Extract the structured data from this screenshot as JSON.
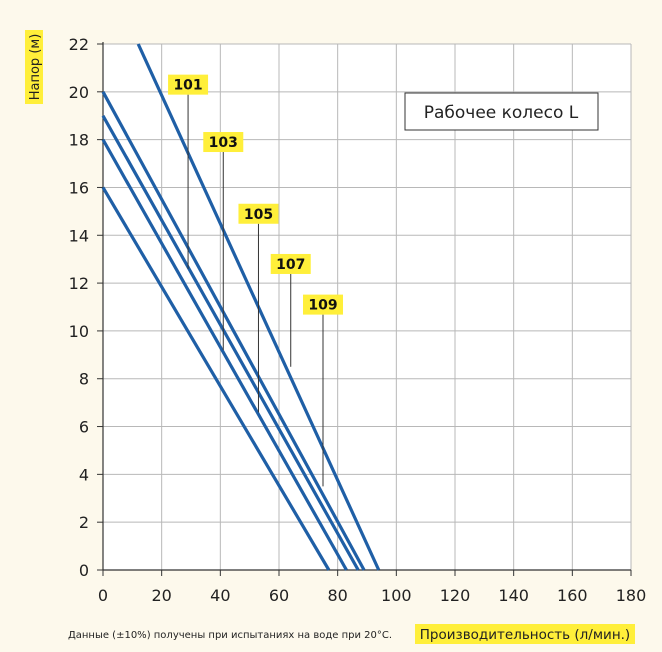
{
  "colors": {
    "background": "#fdf9ec",
    "plot_background": "#ffffff",
    "line": "#1f5fa6",
    "grid": "#b8b8b8",
    "label_highlight": "#ffef3a",
    "text": "#222222"
  },
  "chart_data": {
    "type": "line",
    "title": "",
    "annotation_box": "Рабочее колесо L",
    "ylabel": "Напор (м)",
    "xlabel": "Производительность (л/мин.)",
    "footnote": "Данные (±10%) получены при испытаниях на воде при 20°С.",
    "xlim": [
      0,
      180
    ],
    "ylim": [
      0,
      22
    ],
    "x_ticks": [
      0,
      20,
      40,
      60,
      80,
      100,
      120,
      140,
      160,
      180
    ],
    "y_ticks": [
      0,
      2,
      4,
      6,
      8,
      10,
      12,
      14,
      16,
      18,
      20,
      22
    ],
    "grid": true,
    "series": [
      {
        "name": "101",
        "x": [
          0,
          77
        ],
        "y": [
          16,
          0
        ],
        "label_at": [
          29,
          20.3
        ],
        "pointer_to": [
          29,
          12.6
        ]
      },
      {
        "name": "103",
        "x": [
          0,
          83
        ],
        "y": [
          18,
          0
        ],
        "label_at": [
          41,
          17.9
        ],
        "pointer_to": [
          41,
          9.2
        ]
      },
      {
        "name": "105",
        "x": [
          0,
          87
        ],
        "y": [
          19,
          0
        ],
        "label_at": [
          53,
          14.9
        ],
        "pointer_to": [
          53,
          6.6
        ]
      },
      {
        "name": "107",
        "x": [
          0,
          89
        ],
        "y": [
          20,
          0
        ],
        "label_at": [
          64,
          12.8
        ],
        "pointer_to": [
          64,
          8.5
        ]
      },
      {
        "name": "109",
        "x": [
          12,
          94
        ],
        "y": [
          22,
          0
        ],
        "label_at": [
          75,
          11.1
        ],
        "pointer_to": [
          75,
          3.5
        ]
      }
    ]
  }
}
